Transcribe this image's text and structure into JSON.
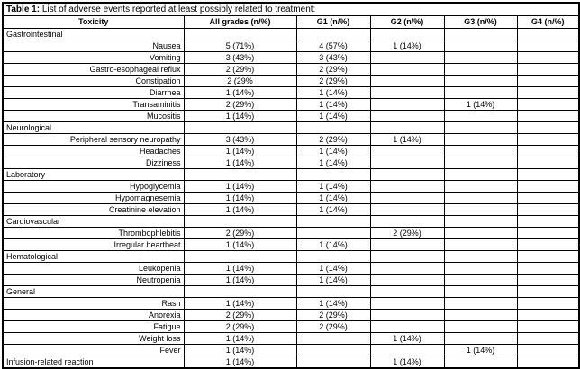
{
  "title": {
    "label": "Table 1:",
    "text": " List of adverse events reported at least possibly related to treatment:"
  },
  "columns": [
    "Toxicity",
    "All grades (n/%)",
    "G1 (n/%)",
    "G2 (n/%)",
    "G3 (n/%)",
    "G4 (n/%)"
  ],
  "rows": [
    {
      "style": "section",
      "label": "Gastrointestinal",
      "values": [
        "",
        "",
        "",
        "",
        ""
      ]
    },
    {
      "style": "item",
      "label": "Nausea",
      "values": [
        "5 (71%)",
        "4 (57%)",
        "1 (14%)",
        "",
        ""
      ]
    },
    {
      "style": "item",
      "label": "Vomiting",
      "values": [
        "3 (43%)",
        "3 (43%)",
        "",
        "",
        ""
      ]
    },
    {
      "style": "item",
      "label": "Gastro-esophageal reflux",
      "values": [
        "2 (29%)",
        "2 (29%)",
        "",
        "",
        ""
      ]
    },
    {
      "style": "item",
      "label": "Constipation",
      "values": [
        "2 (29%",
        "2 (29%)",
        "",
        "",
        ""
      ]
    },
    {
      "style": "item",
      "label": "Diarrhea",
      "values": [
        "1 (14%)",
        "1 (14%)",
        "",
        "",
        ""
      ]
    },
    {
      "style": "item",
      "label": "Transaminitis",
      "values": [
        "2 (29%)",
        "1 (14%)",
        "",
        "1 (14%)",
        ""
      ]
    },
    {
      "style": "item",
      "label": "Mucositis",
      "values": [
        "1 (14%)",
        "1 (14%)",
        "",
        "",
        ""
      ]
    },
    {
      "style": "section",
      "label": "Neurological",
      "values": [
        "",
        "",
        "",
        "",
        ""
      ]
    },
    {
      "style": "item",
      "label": "Peripheral sensory neuropathy",
      "values": [
        "3 (43%)",
        "2 (29%)",
        "1 (14%)",
        "",
        ""
      ]
    },
    {
      "style": "item",
      "label": "Headaches",
      "values": [
        "1 (14%)",
        "1 (14%)",
        "",
        "",
        ""
      ]
    },
    {
      "style": "item",
      "label": "Dizziness",
      "values": [
        "1 (14%)",
        "1 (14%)",
        "",
        "",
        ""
      ]
    },
    {
      "style": "section",
      "label": "Laboratory",
      "values": [
        "",
        "",
        "",
        "",
        ""
      ]
    },
    {
      "style": "item",
      "label": "Hypoglycemia",
      "values": [
        "1 (14%)",
        "1 (14%)",
        "",
        "",
        ""
      ]
    },
    {
      "style": "item",
      "label": "Hypomagnesemia",
      "values": [
        "1 (14%)",
        "1 (14%)",
        "",
        "",
        ""
      ]
    },
    {
      "style": "item",
      "label": "Creatinine elevation",
      "values": [
        "1 (14%)",
        "1 (14%)",
        "",
        "",
        ""
      ]
    },
    {
      "style": "section",
      "label": "Cardiovascular",
      "values": [
        "",
        "",
        "",
        "",
        ""
      ]
    },
    {
      "style": "item",
      "label": "Thrombophlebitis",
      "values": [
        "2 (29%)",
        "",
        "2 (29%)",
        "",
        ""
      ]
    },
    {
      "style": "item",
      "label": "Irregular heartbeat",
      "values": [
        "1 (14%)",
        "1 (14%)",
        "",
        "",
        ""
      ]
    },
    {
      "style": "section",
      "label": "Hematological",
      "values": [
        "",
        "",
        "",
        "",
        ""
      ]
    },
    {
      "style": "item",
      "label": "Leukopenia",
      "values": [
        "1 (14%)",
        "1 (14%)",
        "",
        "",
        ""
      ]
    },
    {
      "style": "item",
      "label": "Neutropenia",
      "values": [
        "1 (14%)",
        "1 (14%)",
        "",
        "",
        ""
      ]
    },
    {
      "style": "section",
      "label": "General",
      "values": [
        "",
        "",
        "",
        "",
        ""
      ]
    },
    {
      "style": "item",
      "label": "Rash",
      "values": [
        "1 (14%)",
        "1 (14%)",
        "",
        "",
        ""
      ]
    },
    {
      "style": "item",
      "label": "Anorexia",
      "values": [
        "2 (29%)",
        "2 (29%)",
        "",
        "",
        ""
      ]
    },
    {
      "style": "item",
      "label": "Fatigue",
      "values": [
        "2 (29%)",
        "2 (29%)",
        "",
        "",
        ""
      ]
    },
    {
      "style": "item",
      "label": "Weight loss",
      "values": [
        "1 (14%)",
        "",
        "1 (14%)",
        "",
        ""
      ]
    },
    {
      "style": "item",
      "label": "Fever",
      "values": [
        "1 (14%)",
        "",
        "",
        "1 (14%)",
        ""
      ]
    },
    {
      "style": "section",
      "label": "Infusion-related reaction",
      "values": [
        "1 (14%)",
        "",
        "1 (14%)",
        "",
        ""
      ]
    }
  ],
  "colors": {
    "text": "#000000",
    "border": "#000000",
    "background": "#ffffff"
  }
}
